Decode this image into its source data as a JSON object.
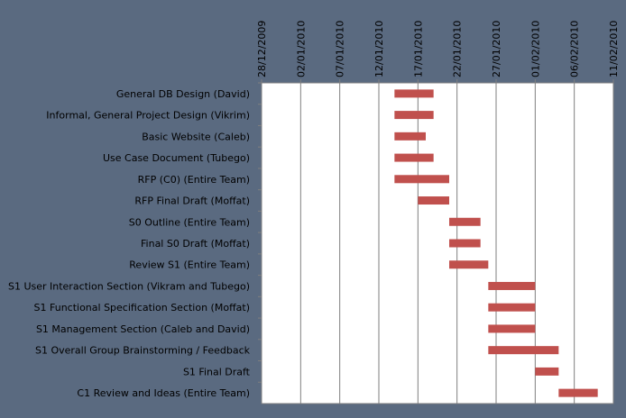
{
  "chart_data": {
    "type": "bar",
    "orientation": "horizontal",
    "title": "",
    "xlabel": "",
    "ylabel": "",
    "grid": true,
    "legend": "none",
    "xlim": [
      "2009-12-28",
      "2010-02-11"
    ],
    "x_ticks": [
      "28/12/2009",
      "02/01/2010",
      "07/01/2010",
      "12/01/2010",
      "17/01/2010",
      "22/01/2010",
      "27/01/2010",
      "01/02/2010",
      "06/02/2010",
      "11/02/2010"
    ],
    "tasks": [
      {
        "name": "General DB Design (David)",
        "start": "2010-01-14",
        "end": "2010-01-19"
      },
      {
        "name": "Informal, General Project Design (Vikrim)",
        "start": "2010-01-14",
        "end": "2010-01-19"
      },
      {
        "name": "Basic Website (Caleb)",
        "start": "2010-01-14",
        "end": "2010-01-18"
      },
      {
        "name": "Use Case Document (Tubego)",
        "start": "2010-01-14",
        "end": "2010-01-19"
      },
      {
        "name": "RFP (C0) (Entire Team)",
        "start": "2010-01-14",
        "end": "2010-01-21"
      },
      {
        "name": "RFP Final Draft (Moffat)",
        "start": "2010-01-17",
        "end": "2010-01-21"
      },
      {
        "name": "S0 Outline (Entire Team)",
        "start": "2010-01-21",
        "end": "2010-01-25"
      },
      {
        "name": "Final S0 Draft (Moffat)",
        "start": "2010-01-21",
        "end": "2010-01-25"
      },
      {
        "name": "Review S1 (Entire Team)",
        "start": "2010-01-21",
        "end": "2010-01-26"
      },
      {
        "name": "S1 User Interaction Section (Vikram and Tubego)",
        "start": "2010-01-26",
        "end": "2010-02-01"
      },
      {
        "name": "S1 Functional Specification Section (Moffat)",
        "start": "2010-01-26",
        "end": "2010-02-01"
      },
      {
        "name": "S1 Management Section (Caleb and David)",
        "start": "2010-01-26",
        "end": "2010-02-01"
      },
      {
        "name": "S1 Overall Group Brainstorming / Feedback",
        "start": "2010-01-26",
        "end": "2010-02-04"
      },
      {
        "name": "S1 Final Draft",
        "start": "2010-02-01",
        "end": "2010-02-04"
      },
      {
        "name": "C1 Review and Ideas (Entire Team)",
        "start": "2010-02-04",
        "end": "2010-02-09"
      }
    ],
    "colors": {
      "background": "#5a6a80",
      "plot_area": "#ffffff",
      "bar": "#c0504d",
      "grid": "#7f7f7f",
      "text": "#000000"
    }
  }
}
